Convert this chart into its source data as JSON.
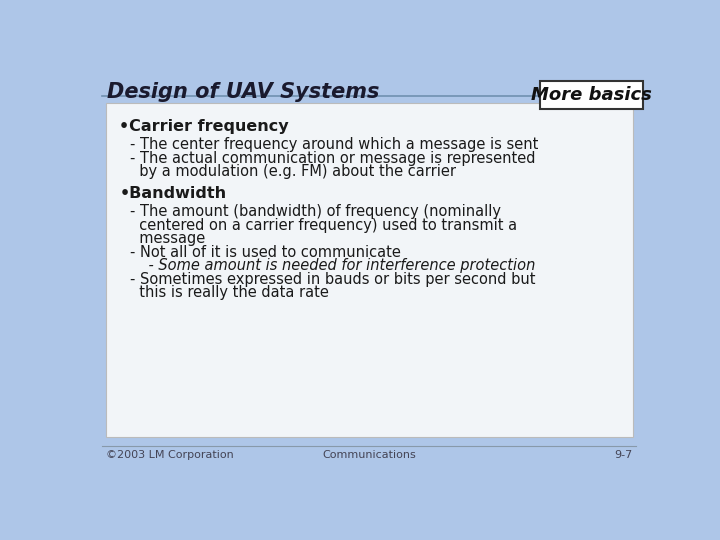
{
  "title": "Design of UAV Systems",
  "badge_text": "More basics",
  "slide_bg": "#aec6e8",
  "content_box_color": "#f2f5f8",
  "content_box_border": "#bbbbbb",
  "title_color": "#1a1a2e",
  "title_fontsize": 15,
  "badge_bg": "#ffffff",
  "badge_border": "#333333",
  "badge_text_color": "#111111",
  "badge_fontsize": 13,
  "footer_left": "©2003 LM Corporation",
  "footer_center": "Communications",
  "footer_right": "9-7",
  "footer_fontsize": 8,
  "header_line_color": "#7090b0",
  "bullet1_label": "•Carrier frequency",
  "bullet1_lines": [
    "- The center frequency around which a message is sent",
    "- The actual communication or message is represented",
    "  by a modulation (e.g. FM) about the carrier"
  ],
  "bullet2_label": "•Bandwidth",
  "bullet2_lines": [
    "- The amount (bandwidth) of frequency (nominally",
    "  centered on a carrier frequency) used to transmit a",
    "  message",
    "- Not all of it is used to communicate",
    "    - Some amount is needed for interference protection",
    "- Sometimes expressed in bauds or bits per second but",
    "  this is really the data rate"
  ],
  "bullet2_italic_line_idx": 4,
  "content_fontsize": 10.5,
  "bullet_label_fontsize": 11.5,
  "text_color": "#1a1a1a"
}
